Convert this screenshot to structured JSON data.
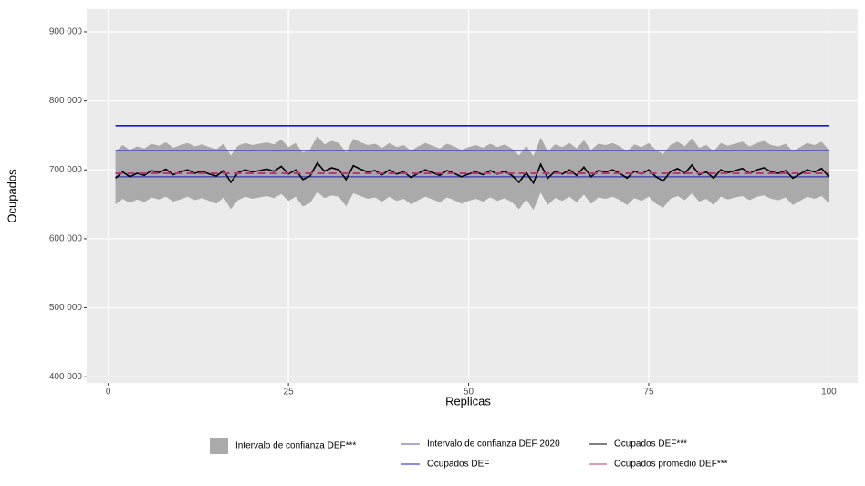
{
  "chart_data": {
    "type": "line",
    "xlabel": "Replicas",
    "ylabel": "Ocupados",
    "x": [
      1,
      2,
      3,
      4,
      5,
      6,
      7,
      8,
      9,
      10,
      11,
      12,
      13,
      14,
      15,
      16,
      17,
      18,
      19,
      20,
      21,
      22,
      23,
      24,
      25,
      26,
      27,
      28,
      29,
      30,
      31,
      32,
      33,
      34,
      35,
      36,
      37,
      38,
      39,
      40,
      41,
      42,
      43,
      44,
      45,
      46,
      47,
      48,
      49,
      50,
      51,
      52,
      53,
      54,
      55,
      56,
      57,
      58,
      59,
      60,
      61,
      62,
      63,
      64,
      65,
      66,
      67,
      68,
      69,
      70,
      71,
      72,
      73,
      74,
      75,
      76,
      77,
      78,
      79,
      80,
      81,
      82,
      83,
      84,
      85,
      86,
      87,
      88,
      89,
      90,
      91,
      92,
      93,
      94,
      95,
      96,
      97,
      98,
      99,
      100
    ],
    "xlim": [
      -3,
      104
    ],
    "ylim": [
      391000,
      933000
    ],
    "xticks": [
      0,
      25,
      50,
      75,
      100
    ],
    "yticks": [
      {
        "value": 400000,
        "label": "400 000"
      },
      {
        "value": 500000,
        "label": "500 000"
      },
      {
        "value": 600000,
        "label": "600 000"
      },
      {
        "value": 700000,
        "label": "700 000"
      },
      {
        "value": 800000,
        "label": "800 000"
      },
      {
        "value": 900000,
        "label": "900 000"
      }
    ],
    "grid": true,
    "legend": "bottom",
    "band": {
      "name": "Intervalo de confianza DEF***",
      "color": "#aaaaaa",
      "lower": [
        650000,
        658000,
        652000,
        657000,
        653000,
        660000,
        657000,
        661000,
        654000,
        657000,
        661000,
        656000,
        659000,
        655000,
        651000,
        660000,
        643000,
        656000,
        661000,
        658000,
        660000,
        662000,
        659000,
        665000,
        655000,
        661000,
        647000,
        652000,
        668000,
        659000,
        663000,
        661000,
        647000,
        666000,
        662000,
        658000,
        660000,
        654000,
        661000,
        655000,
        658000,
        650000,
        656000,
        661000,
        657000,
        653000,
        660000,
        656000,
        651000,
        655000,
        658000,
        654000,
        660000,
        655000,
        659000,
        653000,
        643000,
        657000,
        642000,
        667000,
        649000,
        659000,
        655000,
        661000,
        653000,
        664000,
        651000,
        660000,
        658000,
        661000,
        656000,
        649000,
        659000,
        655000,
        661000,
        651000,
        645000,
        658000,
        662000,
        656000,
        666000,
        654000,
        658000,
        649000,
        661000,
        657000,
        660000,
        662000,
        656000,
        661000,
        663000,
        658000,
        656000,
        660000,
        649000,
        655000,
        661000,
        658000,
        662000,
        652000
      ],
      "upper": [
        727000,
        736000,
        729000,
        734000,
        731000,
        738000,
        735000,
        740000,
        732000,
        736000,
        739000,
        734000,
        737000,
        733000,
        730000,
        738000,
        721000,
        735000,
        739000,
        736000,
        738000,
        740000,
        737000,
        744000,
        733000,
        739000,
        725000,
        730000,
        749000,
        737000,
        742000,
        739000,
        725000,
        745000,
        740000,
        736000,
        738000,
        732000,
        739000,
        733000,
        736000,
        728000,
        734000,
        739000,
        735000,
        731000,
        738000,
        734000,
        729000,
        733000,
        736000,
        732000,
        738000,
        733000,
        737000,
        731000,
        721000,
        735000,
        720000,
        747000,
        727000,
        737000,
        733000,
        739000,
        731000,
        743000,
        729000,
        738000,
        736000,
        739000,
        734000,
        727000,
        737000,
        733000,
        739000,
        729000,
        723000,
        736000,
        741000,
        734000,
        746000,
        732000,
        736000,
        727000,
        739000,
        735000,
        738000,
        741000,
        734000,
        739000,
        742000,
        736000,
        734000,
        738000,
        727000,
        733000,
        739000,
        736000,
        741000,
        729000
      ]
    },
    "series": [
      {
        "name": "Ocupados DEF***",
        "color": "#000000",
        "values": [
          688000,
          697000,
          690000,
          695000,
          692000,
          699000,
          696000,
          701000,
          693000,
          697000,
          700000,
          695000,
          698000,
          694000,
          691000,
          699000,
          682000,
          696000,
          700000,
          697000,
          699000,
          701000,
          698000,
          705000,
          694000,
          700000,
          686000,
          691000,
          710000,
          698000,
          703000,
          700000,
          686000,
          706000,
          701000,
          697000,
          699000,
          693000,
          700000,
          694000,
          697000,
          689000,
          695000,
          700000,
          696000,
          692000,
          699000,
          695000,
          690000,
          694000,
          697000,
          693000,
          699000,
          694000,
          698000,
          692000,
          682000,
          696000,
          681000,
          708000,
          688000,
          698000,
          694000,
          700000,
          692000,
          704000,
          690000,
          699000,
          697000,
          700000,
          695000,
          688000,
          698000,
          694000,
          700000,
          690000,
          684000,
          697000,
          702000,
          695000,
          707000,
          693000,
          697000,
          688000,
          700000,
          696000,
          699000,
          702000,
          695000,
          700000,
          703000,
          697000,
          695000,
          699000,
          688000,
          694000,
          700000,
          697000,
          702000,
          690000
        ]
      }
    ],
    "hlines": [
      {
        "name": "Intervalo de confianza DEF 2020",
        "color": "#5454b4",
        "values": [
          690000,
          728000
        ]
      },
      {
        "name": "Ocupados DEF",
        "color": "#1414e6",
        "values": [
          764000
        ]
      },
      {
        "name": "Ocupados promedio DEF***",
        "color": "#b8367a",
        "dashed": true,
        "values": [
          695000
        ]
      }
    ]
  }
}
